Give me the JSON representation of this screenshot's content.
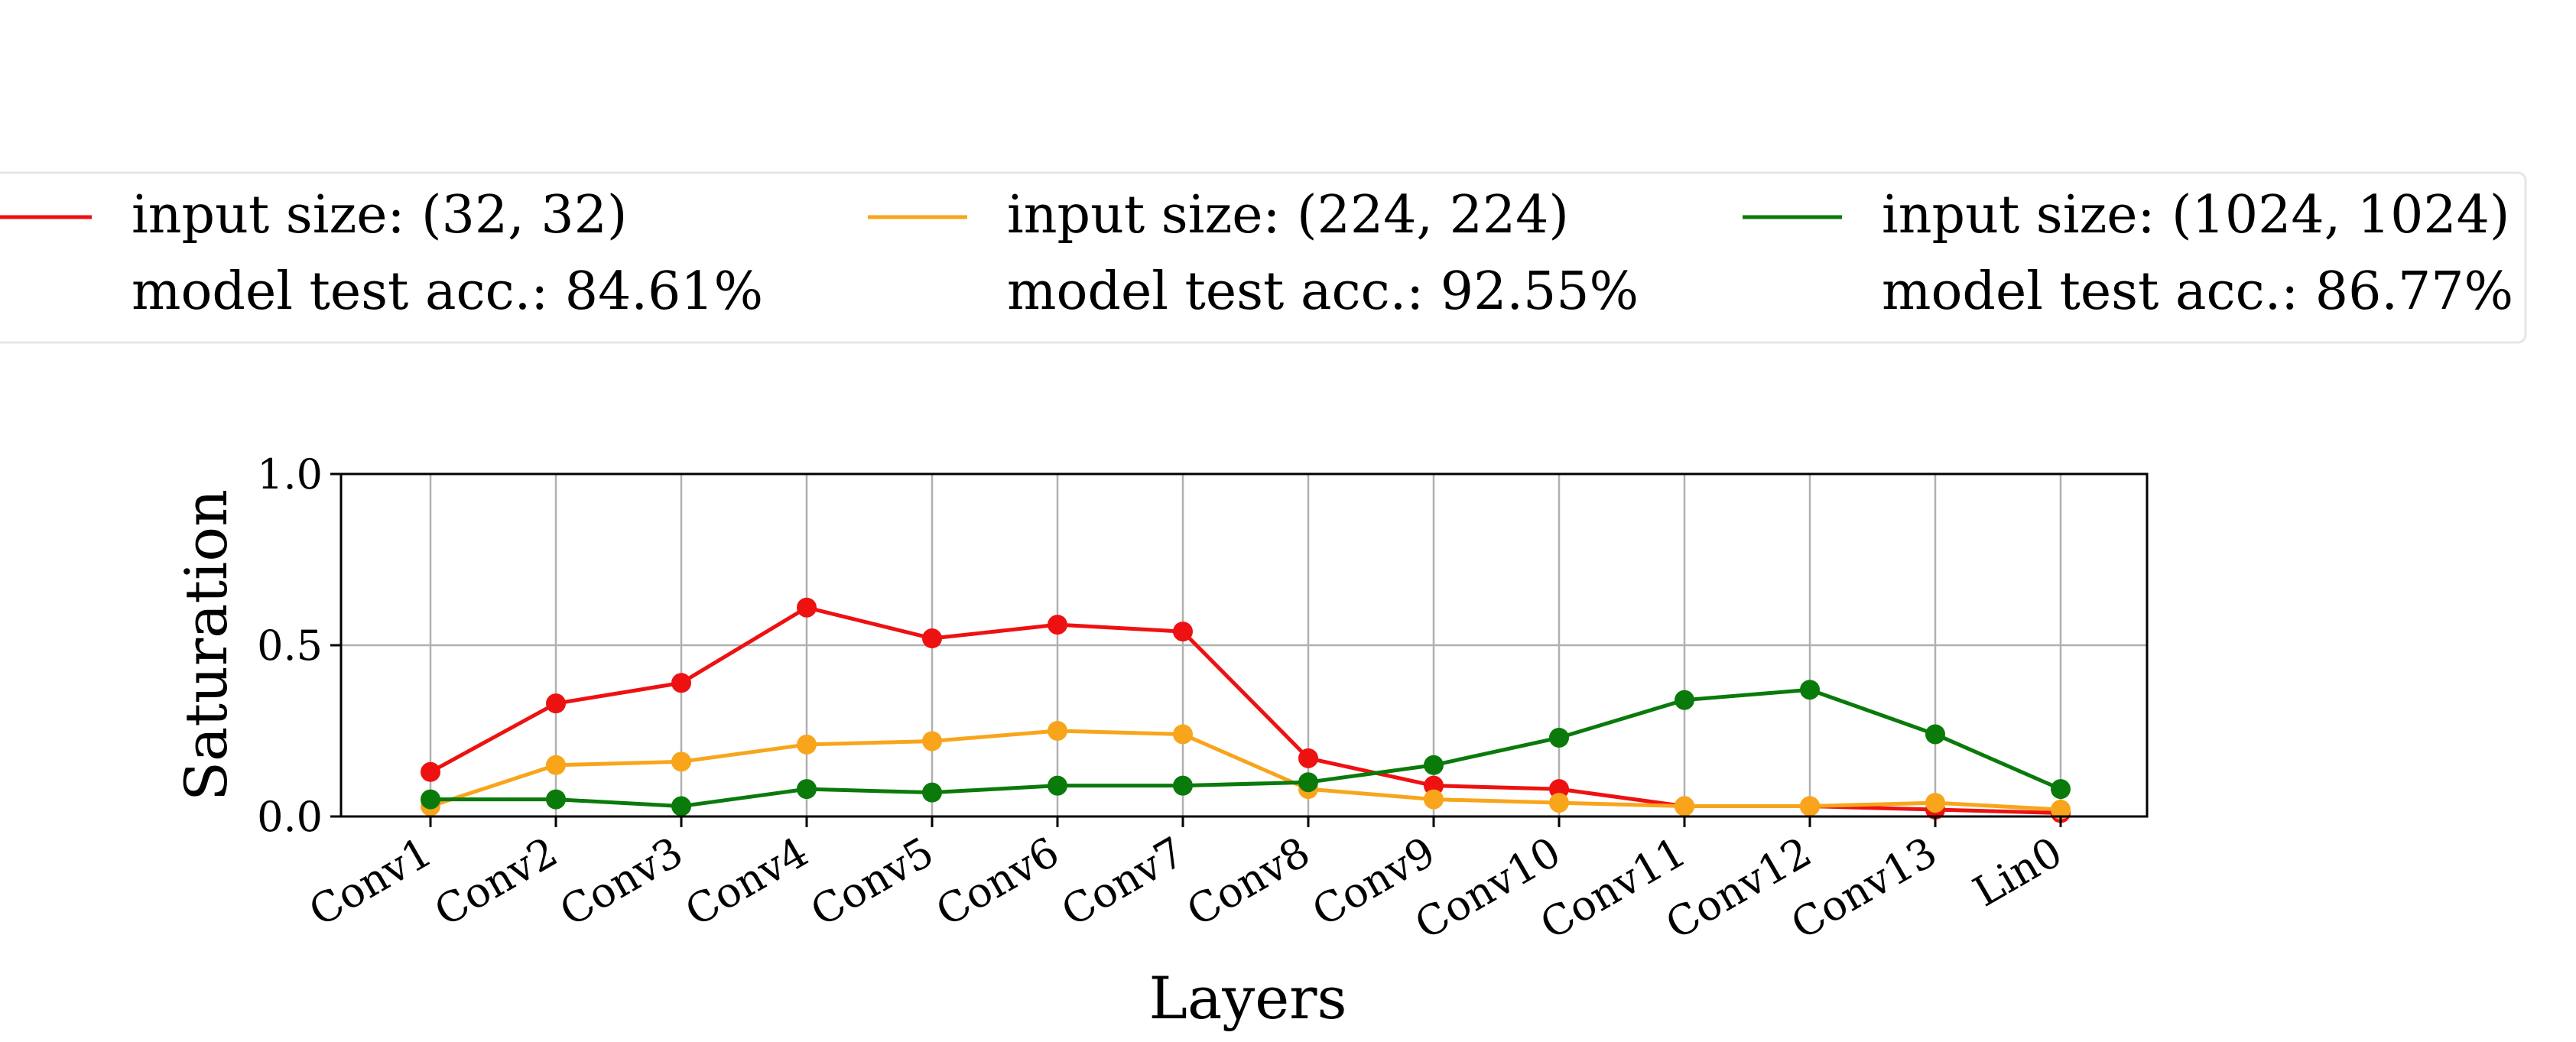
{
  "chart_data": {
    "type": "line",
    "title": "",
    "xlabel": "Layers",
    "ylabel": "Saturation",
    "ylim": [
      0.0,
      1.0
    ],
    "yticks": [
      {
        "value": 0.0,
        "label": "0.0"
      },
      {
        "value": 0.5,
        "label": "0.5"
      },
      {
        "value": 1.0,
        "label": "1.0"
      }
    ],
    "categories": [
      "Conv1",
      "Conv2",
      "Conv3",
      "Conv4",
      "Conv5",
      "Conv6",
      "Conv7",
      "Conv8",
      "Conv9",
      "Conv10",
      "Conv11",
      "Conv12",
      "Conv13",
      "Lin0"
    ],
    "grid": true,
    "legend_position": "top",
    "series": [
      {
        "name": "input size: (32, 32)",
        "subtitle": "model test acc.: 84.61%",
        "color": "#ee1111",
        "values": [
          0.13,
          0.33,
          0.39,
          0.61,
          0.52,
          0.56,
          0.54,
          0.17,
          0.09,
          0.08,
          0.03,
          0.03,
          0.02,
          0.01
        ]
      },
      {
        "name": "input size: (224, 224)",
        "subtitle": "model test acc.: 92.55%",
        "color": "#f8a51b",
        "values": [
          0.03,
          0.15,
          0.16,
          0.21,
          0.22,
          0.25,
          0.24,
          0.08,
          0.05,
          0.04,
          0.03,
          0.03,
          0.04,
          0.02
        ]
      },
      {
        "name": "input size: (1024, 1024)",
        "subtitle": "model test acc.: 86.77%",
        "color": "#0a7a0a",
        "values": [
          0.05,
          0.05,
          0.03,
          0.08,
          0.07,
          0.09,
          0.09,
          0.1,
          0.15,
          0.23,
          0.34,
          0.37,
          0.24,
          0.08
        ]
      }
    ]
  }
}
